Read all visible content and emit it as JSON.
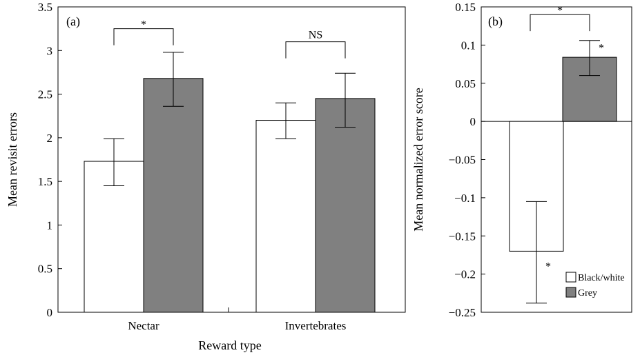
{
  "chart_data": [
    {
      "type": "bar",
      "panel_label": "(a)",
      "title": "",
      "xlabel": "Reward type",
      "ylabel": "Mean revisit errors",
      "ylim": [
        0,
        3.5
      ],
      "yticks": [
        0,
        0.5,
        1,
        1.5,
        2,
        2.5,
        3,
        3.5
      ],
      "ytick_labels": [
        "0",
        "0.5",
        "1",
        "1.5",
        "2",
        "2.5",
        "3",
        "3.5"
      ],
      "categories": [
        "Nectar",
        "Invertebrates"
      ],
      "series": [
        {
          "name": "Black/white",
          "color": "#ffffff",
          "values": [
            1.73,
            2.2
          ],
          "err_low": [
            1.45,
            1.99
          ],
          "err_high": [
            1.99,
            2.4
          ]
        },
        {
          "name": "Grey",
          "color": "#808080",
          "values": [
            2.68,
            2.45
          ],
          "err_low": [
            2.36,
            2.12
          ],
          "err_high": [
            2.98,
            2.74
          ]
        }
      ],
      "annotations": [
        {
          "category": 0,
          "text": "*",
          "bracket_y": 3.25
        },
        {
          "category": 1,
          "text": "NS",
          "bracket_y": 3.1
        }
      ],
      "grid": false
    },
    {
      "type": "bar",
      "panel_label": "(b)",
      "title": "",
      "xlabel": "",
      "ylabel": "Mean normalized error score",
      "ylim": [
        -0.25,
        0.15
      ],
      "yticks": [
        -0.25,
        -0.2,
        -0.15,
        -0.1,
        -0.05,
        0,
        0.05,
        0.1,
        0.15
      ],
      "ytick_labels": [
        "−0.25",
        "−0.2",
        "−0.15",
        "−0.1",
        "−0.05",
        "0",
        "0.05",
        "0.1",
        "0.15"
      ],
      "categories": [
        ""
      ],
      "series": [
        {
          "name": "Black/white",
          "color": "#ffffff",
          "values": [
            -0.17
          ],
          "err_low": [
            -0.238
          ],
          "err_high": [
            -0.105
          ],
          "sig": "*"
        },
        {
          "name": "Grey",
          "color": "#808080",
          "values": [
            0.084
          ],
          "err_low": [
            0.06
          ],
          "err_high": [
            0.106
          ],
          "sig": "*"
        }
      ],
      "annotations": [
        {
          "text": "*",
          "bracket_y": 0.14
        }
      ],
      "legend": {
        "position": "bottom-right",
        "entries": [
          "Black/white",
          "Grey"
        ]
      },
      "grid": false
    }
  ]
}
